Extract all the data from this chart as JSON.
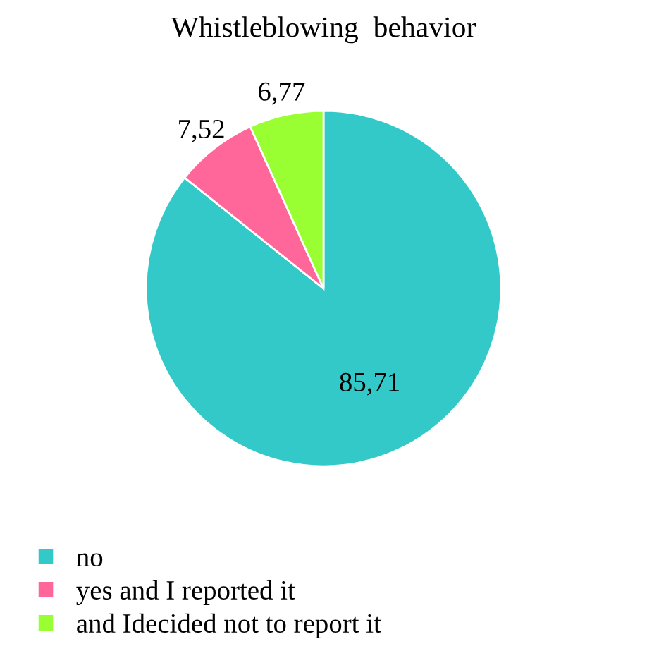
{
  "chart_data": {
    "type": "pie",
    "title": "Whistleblowing  behavior",
    "categories": [
      "no",
      "yes and I reported it",
      "and Idecided not to report it"
    ],
    "values": [
      85.71,
      7.52,
      6.77
    ],
    "value_labels": [
      "85,71",
      "7,52",
      "6,77"
    ],
    "colors": [
      "#33c9c9",
      "#ff6699",
      "#99ff33"
    ],
    "legend": "bottom"
  }
}
